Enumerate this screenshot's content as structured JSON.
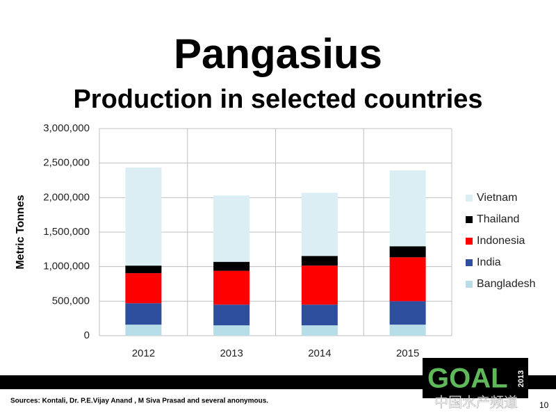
{
  "chart_data": {
    "type": "stacked-bar",
    "title": "Pangasius",
    "subtitle": "Production in selected countries",
    "y_label": "Metric Tonnes",
    "categories": [
      "2012",
      "2013",
      "2014",
      "2015"
    ],
    "series": [
      {
        "name": "Bangladesh",
        "color": "#b7dde8",
        "values": [
          160000,
          150000,
          150000,
          160000
        ]
      },
      {
        "name": "India",
        "color": "#2e4f9e",
        "values": [
          310000,
          300000,
          300000,
          340000
        ]
      },
      {
        "name": "Indonesia",
        "color": "#ff0000",
        "values": [
          435000,
          490000,
          565000,
          635000
        ]
      },
      {
        "name": "Thailand",
        "color": "#000000",
        "values": [
          110000,
          130000,
          140000,
          160000
        ]
      },
      {
        "name": "Vietnam",
        "color": "#daeef3",
        "values": [
          1420000,
          960000,
          915000,
          1100000
        ]
      }
    ],
    "ylim": [
      0,
      3000000
    ],
    "yticks": [
      0,
      {
        "value": 500000,
        "label": "500,000"
      },
      {
        "value": 1000000,
        "label": "1,000,000"
      },
      {
        "value": 1500000,
        "label": "1,500,000"
      },
      {
        "value": 2000000,
        "label": "2,000,000"
      },
      {
        "value": 2500000,
        "label": "2,500,000"
      },
      {
        "value": 3000000,
        "label": "3,000,000"
      }
    ],
    "grid": true,
    "legend": "right"
  },
  "footer": {
    "source": "Sources: Kontali, Dr. P.E.Vijay Anand , M Siva Prasad and several anonymous.",
    "page": "10",
    "logo": "GOAL",
    "logo_year": "2013",
    "watermark": "中国水产频道"
  }
}
